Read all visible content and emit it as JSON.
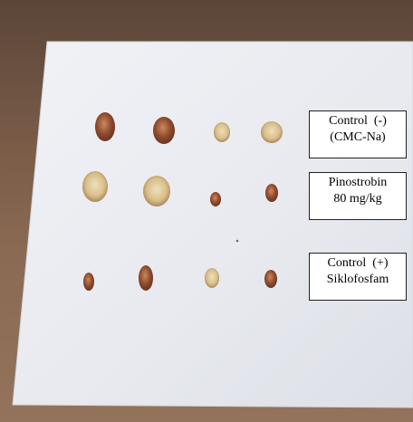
{
  "image": {
    "description_colors": {
      "paper": "#eceef3",
      "table": "#7a5c48",
      "tissue_dark": "#8a4a2e",
      "tissue_light": "#d9c59a"
    }
  },
  "labels": [
    {
      "line1": "Control  (-)",
      "line2": "(CMC-Na)"
    },
    {
      "line1": "Pinostrobin",
      "line2": "80 mg/kg"
    },
    {
      "line1": "Control  (+)",
      "line2": "Siklofosfam"
    }
  ]
}
